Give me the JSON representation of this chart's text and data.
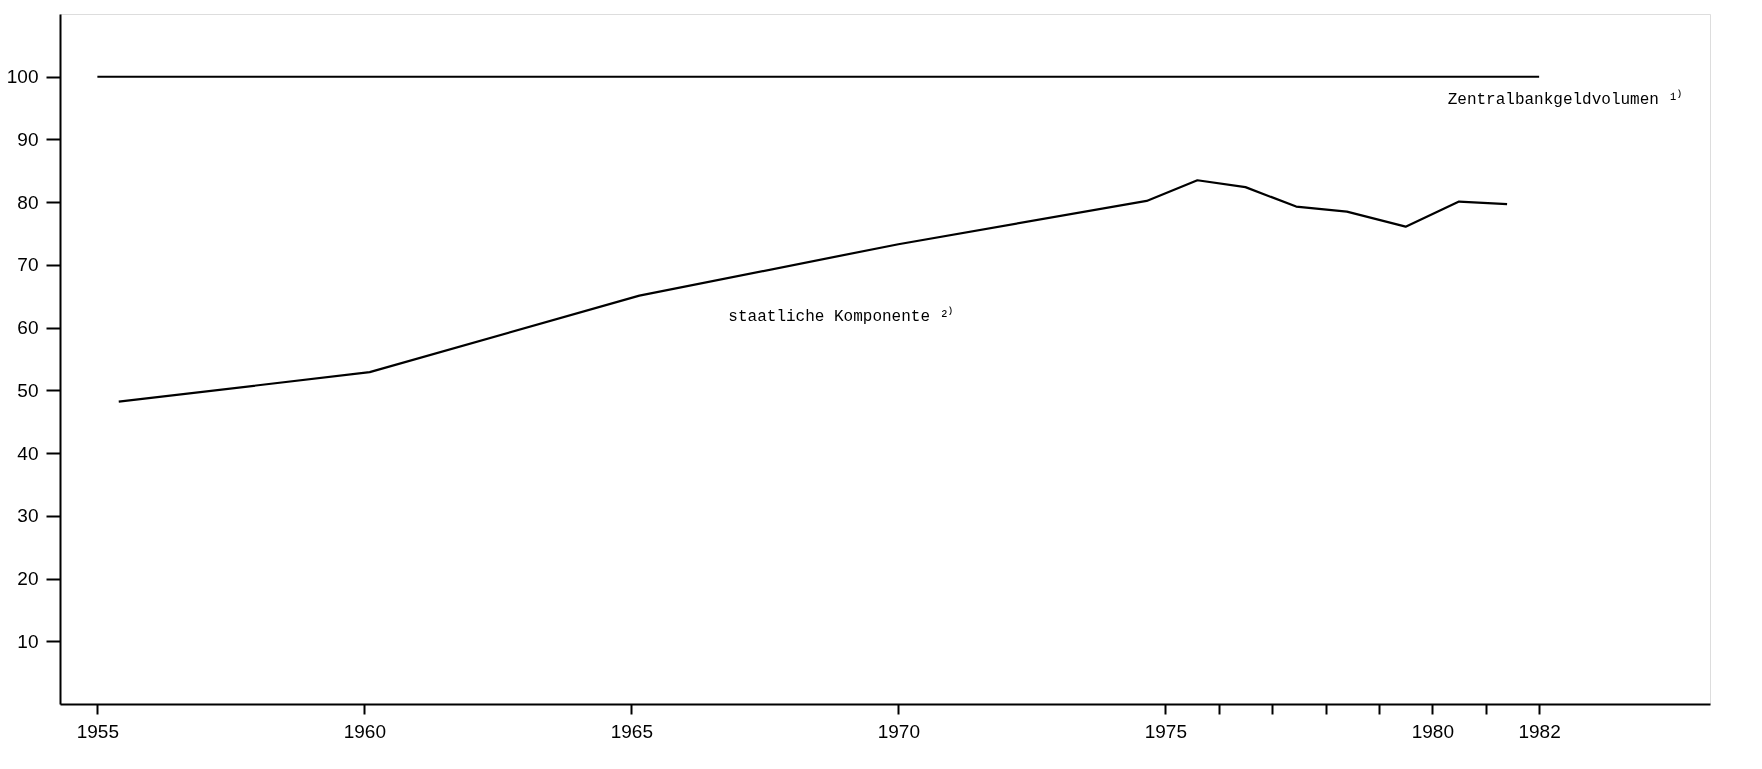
{
  "chart_data": {
    "type": "line",
    "xlim": [
      1954.3,
      1985.2
    ],
    "ylim": [
      0,
      110
    ],
    "xticks": [
      1955,
      1960,
      1965,
      1970,
      1975,
      {
        "value": 1976,
        "label": null
      },
      {
        "value": 1977,
        "label": null
      },
      {
        "value": 1978,
        "label": null
      },
      {
        "value": 1979,
        "label": null
      },
      1980,
      {
        "value": 1981,
        "label": null
      },
      1982
    ],
    "yticks": [
      10,
      20,
      30,
      40,
      50,
      60,
      70,
      80,
      90,
      100
    ],
    "grid": false,
    "legend": false,
    "marker": "none",
    "line_style": "solid",
    "series": [
      {
        "name": "Zentralbankgeldvolumen ¹⁾",
        "color": "#000000",
        "x": [
          1955,
          1982
        ],
        "values": [
          100,
          100
        ]
      },
      {
        "name": "staatliche Komponente ²⁾",
        "color": "#000000",
        "x": [
          1955.4,
          1960.1,
          1965.15,
          1970.0,
          1974.65,
          1975.6,
          1976.5,
          1977.45,
          1978.4,
          1979.5,
          1980.5,
          1981.4
        ],
        "values": [
          48.2,
          52.9,
          65.1,
          73.3,
          80.2,
          83.5,
          82.4,
          79.3,
          78.5,
          76.1,
          80.1,
          79.7
        ]
      }
    ]
  }
}
